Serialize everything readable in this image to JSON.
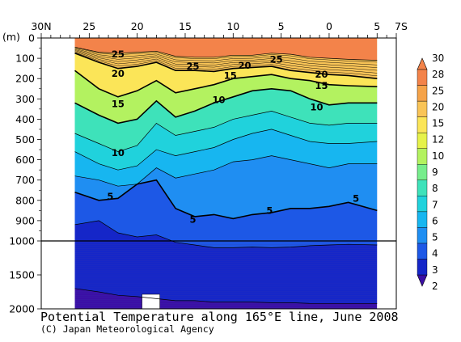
{
  "chart_data": {
    "type": "heatmap",
    "title": "Potential Temperature along 165°E line, June 2008",
    "credit": "(C) Japan Meteorological Agency",
    "y_unit_label": "(m)",
    "x_tick_labels": [
      "30N",
      "25",
      "20",
      "15",
      "10",
      "5",
      "0",
      "5",
      "7S"
    ],
    "x_range_lat": [
      30,
      -7
    ],
    "x_data_range_lat": [
      26.5,
      -5
    ],
    "y_tick_labels_upper": [
      "0",
      "100",
      "200",
      "300",
      "400",
      "500",
      "600",
      "700",
      "800",
      "900",
      "1000"
    ],
    "y_tick_labels_lower": [
      "1500",
      "2000"
    ],
    "y_range_m": [
      0,
      2000
    ],
    "y_scale_break_m": 1000,
    "colorbar_levels": [
      "2",
      "3",
      "4",
      "5",
      "6",
      "7",
      "8",
      "9",
      "10",
      "12",
      "15",
      "20",
      "25",
      "28",
      "30"
    ],
    "colorbar_colors": [
      "#3b0fa6",
      "#1526c8",
      "#1d58e6",
      "#1f8ef2",
      "#17b6f0",
      "#20d2dc",
      "#3ee2ba",
      "#77ed8c",
      "#b3f260",
      "#e6f24a",
      "#fbe558",
      "#f9c457",
      "#f5a349",
      "#f3834a"
    ],
    "contour_labels": [
      {
        "text": "25",
        "lat": 22,
        "depth": 80
      },
      {
        "text": "25",
        "lat": 14.2,
        "depth": 140
      },
      {
        "text": "25",
        "lat": 5.5,
        "depth": 105
      },
      {
        "text": "20",
        "lat": 22,
        "depth": 175
      },
      {
        "text": "20",
        "lat": 8.8,
        "depth": 135
      },
      {
        "text": "20",
        "lat": 0.8,
        "depth": 180
      },
      {
        "text": "15",
        "lat": 10.3,
        "depth": 185
      },
      {
        "text": "15",
        "lat": 22,
        "depth": 325
      },
      {
        "text": "15",
        "lat": 0.8,
        "depth": 235
      },
      {
        "text": "10",
        "lat": 11.5,
        "depth": 305
      },
      {
        "text": "10",
        "lat": 22,
        "depth": 565
      },
      {
        "text": "10",
        "lat": 1.3,
        "depth": 340
      },
      {
        "text": "5",
        "lat": 22.8,
        "depth": 780
      },
      {
        "text": "5",
        "lat": 14.2,
        "depth": 895
      },
      {
        "text": "5",
        "lat": 6.2,
        "depth": 850
      },
      {
        "text": "5",
        "lat": -2.8,
        "depth": 790
      }
    ],
    "isotherm_depths": {
      "lat": [
        26.5,
        24,
        22,
        20,
        18,
        16,
        14,
        12,
        10,
        8,
        6,
        4,
        2,
        0,
        -2,
        -5
      ],
      "t25": [
        45,
        70,
        75,
        70,
        65,
        90,
        95,
        95,
        85,
        85,
        75,
        80,
        95,
        100,
        105,
        110
      ],
      "t20": [
        75,
        120,
        150,
        140,
        120,
        160,
        160,
        165,
        150,
        145,
        140,
        160,
        170,
        180,
        185,
        200
      ],
      "t15": [
        160,
        250,
        290,
        260,
        210,
        270,
        250,
        230,
        200,
        190,
        180,
        200,
        210,
        230,
        235,
        240
      ],
      "t10": [
        320,
        380,
        420,
        400,
        310,
        390,
        360,
        320,
        290,
        260,
        250,
        260,
        300,
        330,
        320,
        320
      ],
      "t8": [
        470,
        520,
        560,
        530,
        420,
        480,
        460,
        440,
        400,
        380,
        360,
        390,
        420,
        430,
        420,
        420
      ],
      "t7": [
        560,
        620,
        650,
        630,
        550,
        580,
        560,
        540,
        500,
        470,
        450,
        480,
        510,
        520,
        520,
        510
      ],
      "t6": [
        680,
        700,
        730,
        720,
        640,
        690,
        670,
        650,
        610,
        600,
        580,
        600,
        620,
        640,
        620,
        620
      ],
      "t5": [
        760,
        800,
        790,
        720,
        700,
        840,
        880,
        870,
        890,
        870,
        860,
        840,
        840,
        830,
        810,
        850
      ],
      "t4": [
        920,
        900,
        960,
        980,
        970,
        1020,
        1060,
        1100,
        1100,
        1090,
        1100,
        1090,
        1070,
        1060,
        1050,
        1060
      ],
      "t3": [
        1700,
        1750,
        1800,
        1820,
        1850,
        1880,
        1880,
        1900,
        1900,
        1900,
        1910,
        1910,
        1920,
        1920,
        1920,
        1920
      ]
    },
    "grid": false,
    "colorbar_position": "right"
  }
}
